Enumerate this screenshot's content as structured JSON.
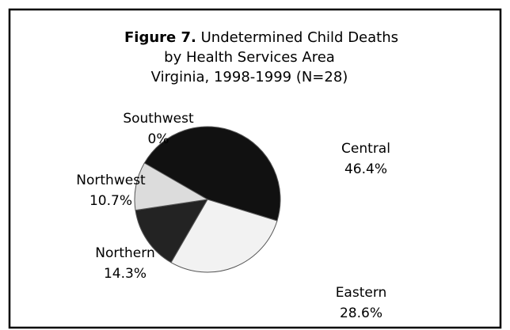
{
  "chart_data": {
    "type": "pie",
    "figure_label": "Figure 7.",
    "title": [
      "Undetermined Child Deaths",
      "by Health Services Area",
      "Virginia, 1998-1999 (N=28)"
    ],
    "categories": [
      "Central",
      "Eastern",
      "Northern",
      "Northwest",
      "Southwest"
    ],
    "values": [
      46.4,
      28.6,
      14.3,
      10.7,
      0
    ],
    "value_labels": [
      "46.4%",
      "28.6%",
      "14.3%",
      "10.7%",
      "0%"
    ],
    "colors": [
      "#111111",
      "#f2f2f2",
      "#232323",
      "#dcdcdc",
      "#888888"
    ]
  }
}
